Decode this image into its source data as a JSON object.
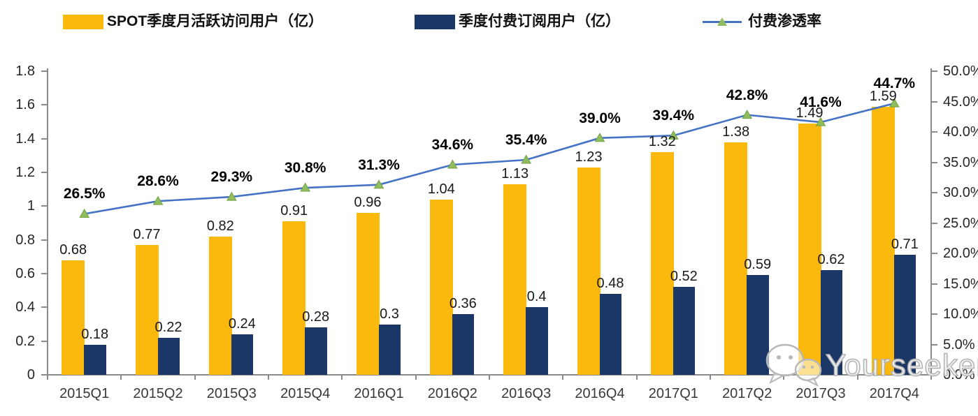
{
  "chart_data": {
    "type": "bar",
    "subtype": "grouped-bars-with-line",
    "title": "",
    "legend_position": "top",
    "grid": false,
    "categories": [
      "2015Q1",
      "2015Q2",
      "2015Q3",
      "2015Q4",
      "2016Q1",
      "2016Q2",
      "2016Q3",
      "2016Q4",
      "2017Q1",
      "2017Q2",
      "2017Q3",
      "2017Q4"
    ],
    "series": [
      {
        "name": "SPOT季度月活跃访问用户（亿）",
        "type": "bar",
        "axis": "left",
        "color": "#FBB90E",
        "values": [
          0.68,
          0.77,
          0.82,
          0.91,
          0.96,
          1.04,
          1.13,
          1.23,
          1.32,
          1.38,
          1.49,
          1.59
        ],
        "value_labels": [
          "0.68",
          "0.77",
          "0.82",
          "0.91",
          "0.96",
          "1.04",
          "1.13",
          "1.23",
          "1.32",
          "1.38",
          "1.49",
          "1.59"
        ]
      },
      {
        "name": "季度付费订阅用户（亿）",
        "type": "bar",
        "axis": "left",
        "color": "#1B3767",
        "values": [
          0.18,
          0.22,
          0.24,
          0.28,
          0.3,
          0.36,
          0.4,
          0.48,
          0.52,
          0.59,
          0.62,
          0.71
        ],
        "value_labels": [
          "0.18",
          "0.22",
          "0.24",
          "0.28",
          "0.3",
          "0.36",
          "0.4",
          "0.48",
          "0.52",
          "0.59",
          "0.62",
          "0.71"
        ]
      },
      {
        "name": "付费渗透率",
        "type": "line",
        "axis": "right",
        "color": "#4472C4",
        "marker": "triangle-up",
        "marker_color": "#8FBC5C",
        "values": [
          26.5,
          28.6,
          29.3,
          30.8,
          31.3,
          34.6,
          35.4,
          39.0,
          39.4,
          42.8,
          41.6,
          44.7
        ],
        "value_labels": [
          "26.5%",
          "28.6%",
          "29.3%",
          "30.8%",
          "31.3%",
          "34.6%",
          "35.4%",
          "39.0%",
          "39.4%",
          "42.8%",
          "41.6%",
          "44.7%"
        ]
      }
    ],
    "left_axis": {
      "min": 0,
      "max": 1.8,
      "step": 0.2,
      "tick_labels": [
        "0",
        "0.2",
        "0.4",
        "0.6",
        "0.8",
        "1",
        "1.2",
        "1.4",
        "1.6",
        "1.8"
      ]
    },
    "right_axis": {
      "min": 0,
      "max": 50,
      "step": 5,
      "tick_labels": [
        "0.0%",
        "5.0%",
        "10.0%",
        "15.0%",
        "20.0%",
        "25.0%",
        "30.0%",
        "35.0%",
        "40.0%",
        "45.0%",
        "50.0%"
      ]
    }
  },
  "watermark": {
    "text": "Yourseeker",
    "icon": "wechat-icon"
  }
}
